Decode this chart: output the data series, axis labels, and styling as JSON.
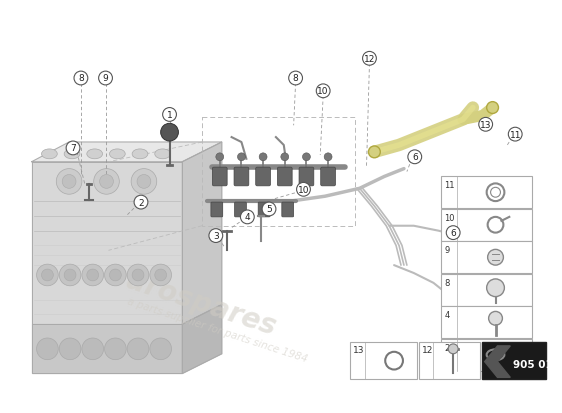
{
  "bg_color": "#ffffff",
  "watermark_color": "#d0ccc4",
  "page_number": "905 01",
  "page_bg": "#1a1a1a",
  "page_text_color": "#ffffff",
  "callout_circle_color": "#ffffff",
  "callout_circle_edge": "#555555",
  "line_color": "#555555",
  "part_box_bg": "#ffffff",
  "part_box_edge": "#aaaaaa",
  "dashed_box_color": "#aaaaaa",
  "engine_line_color": "#aaaaaa",
  "harness_color": "#bbbbbb",
  "yellow_hose_color": "#d4d080",
  "coil_connector_color": "#777777"
}
